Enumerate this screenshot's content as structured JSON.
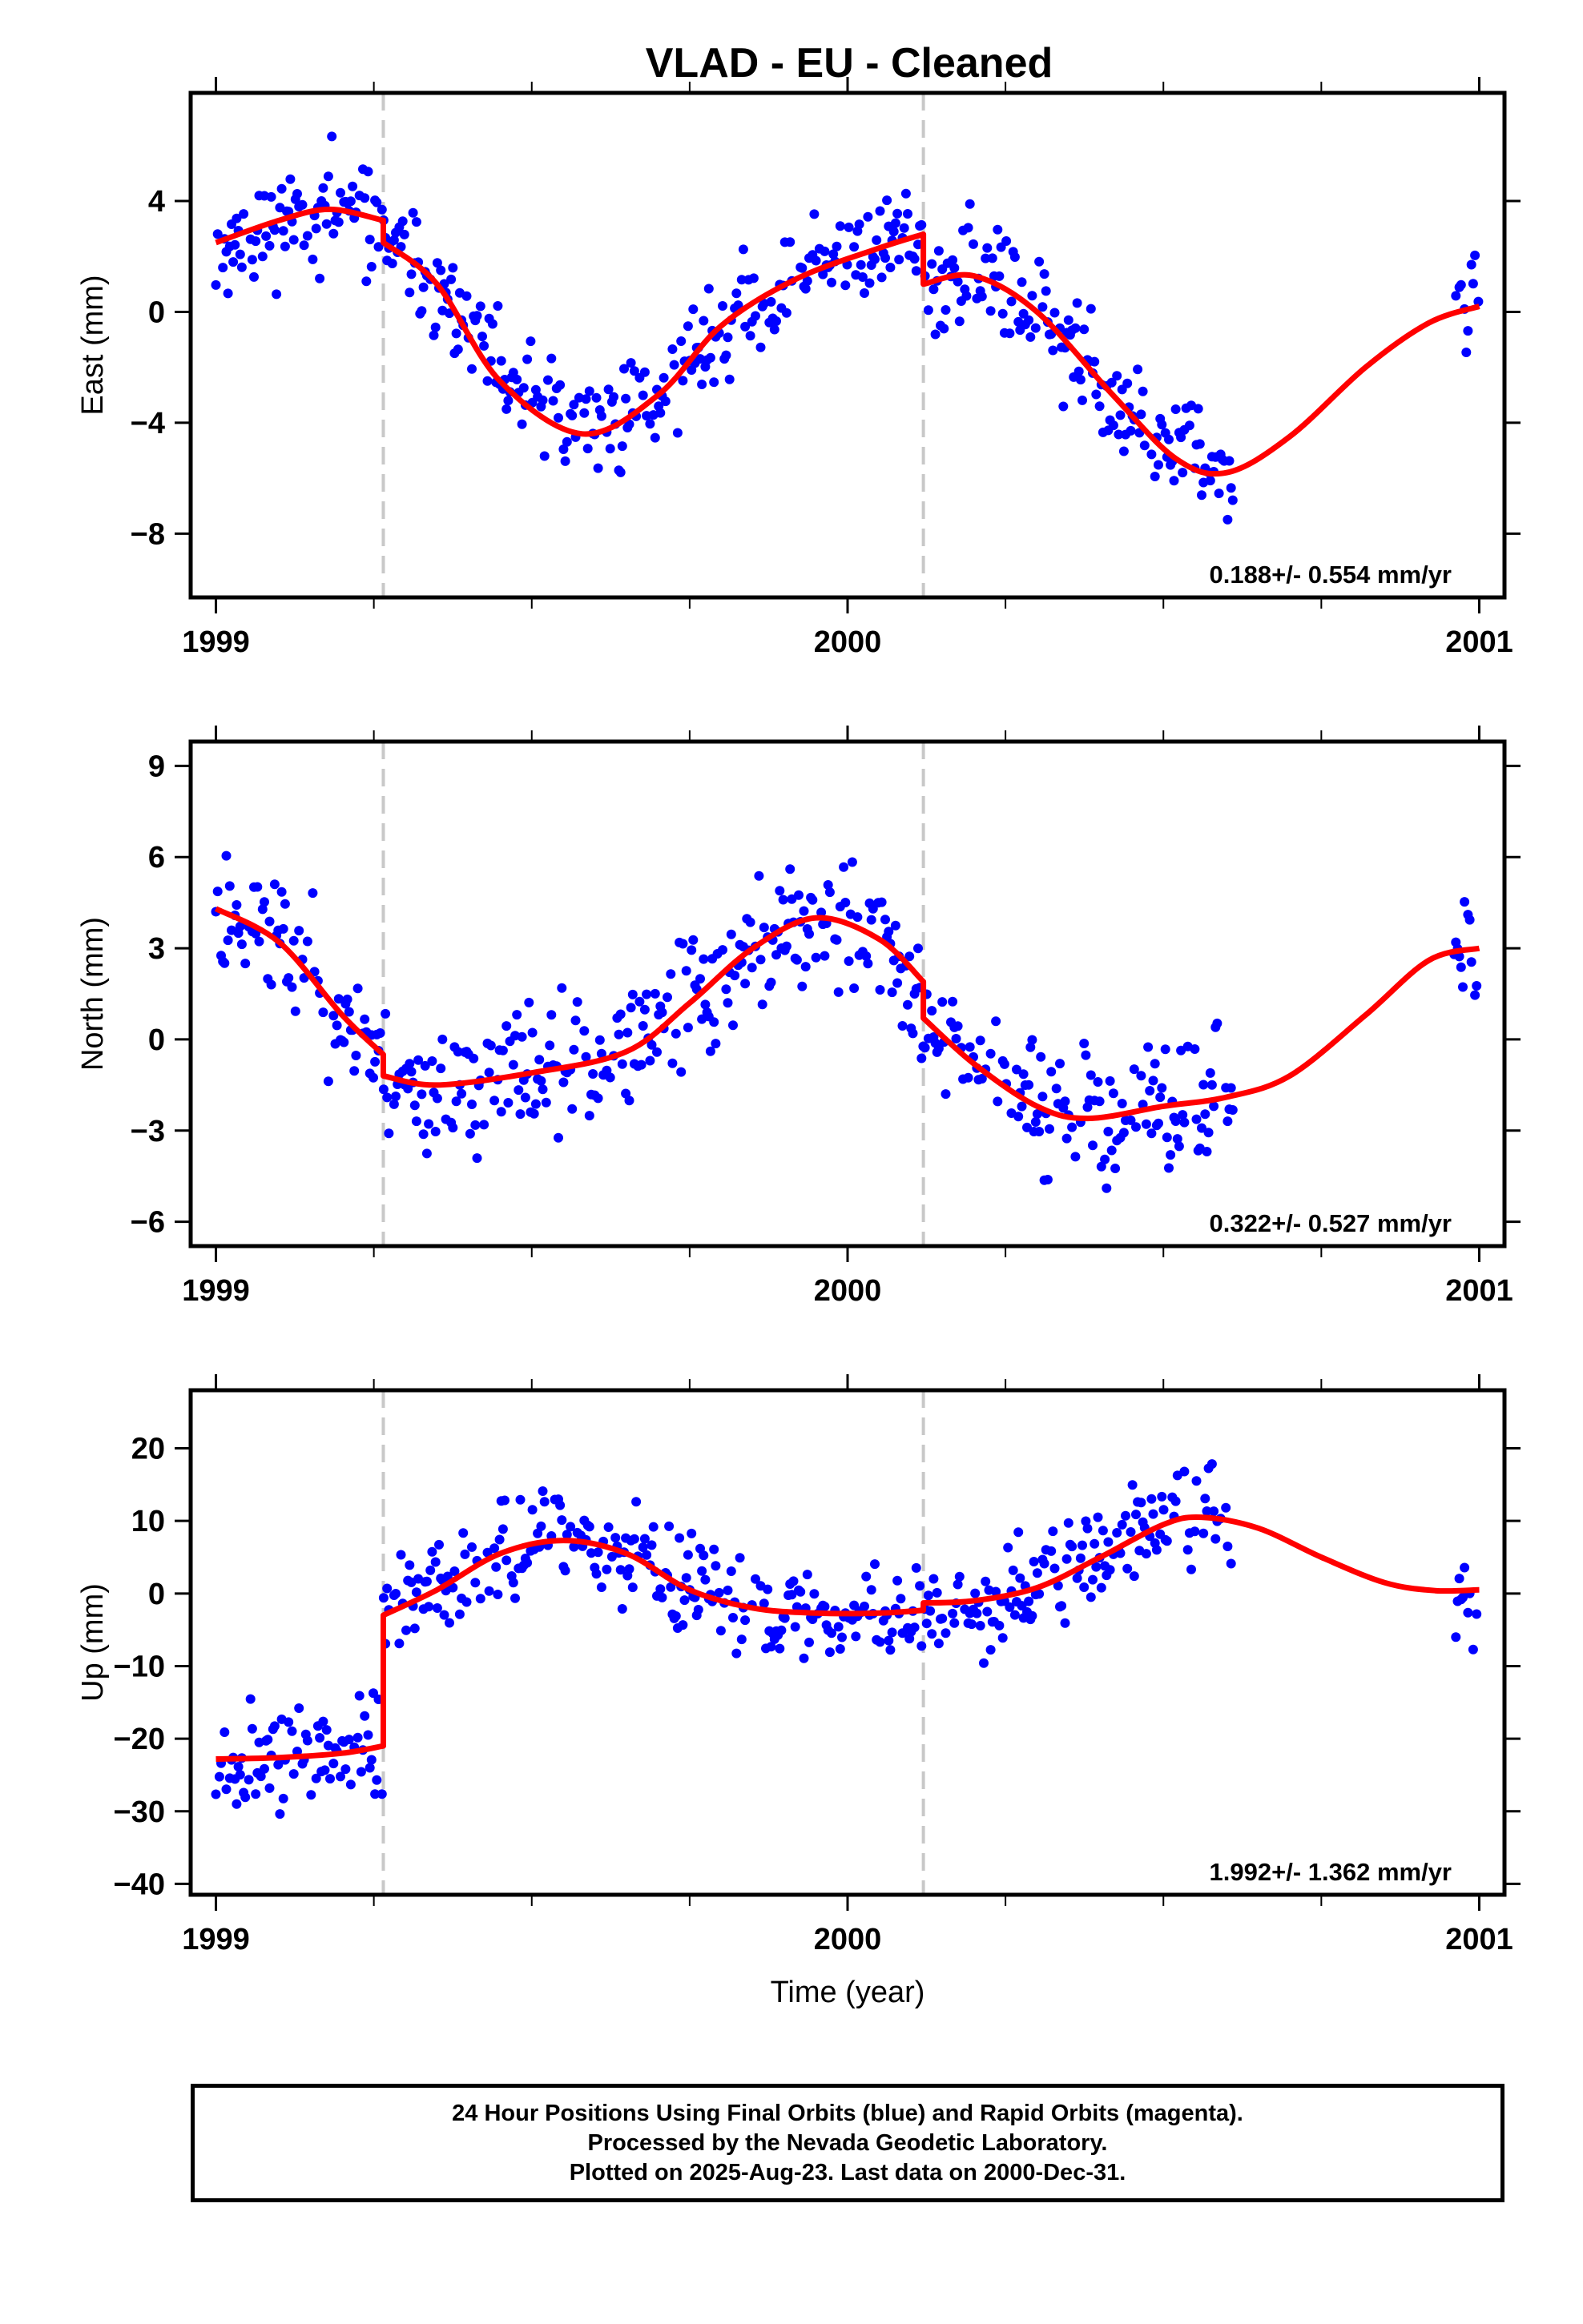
{
  "title": "VLAD  - EU - Cleaned",
  "colors": {
    "points": "#0000ff",
    "fit": "#ff0000",
    "breaks": "#c8c8c8",
    "frame": "#000000"
  },
  "x_axis": {
    "label": "Time (year)",
    "ticks": [
      1999,
      2000,
      2001
    ],
    "range": [
      1998.96,
      2001.04
    ]
  },
  "break_epochs": [
    1999.265,
    2000.12
  ],
  "footer": {
    "line1": "24 Hour Positions Using Final Orbits (blue) and Rapid Orbits (magenta).",
    "line2": "Processed by the Nevada Geodetic Laboratory.",
    "line3": "Plotted on 2025-Aug-23. Last data on 2000-Dec-31."
  },
  "chart_data": [
    {
      "type": "scatter",
      "ylabel": "East (mm)",
      "ylim": [
        -10.3,
        7.9
      ],
      "yticks": [
        -8,
        -4,
        0,
        4
      ],
      "rate": "0.188+/- 0.554 mm/yr",
      "seed": 11,
      "noise": 1.2,
      "fit": {
        "x": [
          1999.0,
          1999.1,
          1999.18,
          1999.265,
          1999.265,
          1999.35,
          1999.45,
          1999.58,
          1999.7,
          1999.8,
          1999.92,
          2000.05,
          2000.12,
          2000.12,
          2000.2,
          2000.3,
          2000.42,
          2000.52,
          2000.6,
          2000.7,
          2000.82,
          2000.92,
          2001.0
        ],
        "y": [
          2.5,
          3.3,
          3.7,
          3.3,
          2.5,
          1.0,
          -2.5,
          -4.4,
          -3.0,
          -0.5,
          1.2,
          2.3,
          2.8,
          1.0,
          1.3,
          0.0,
          -3.0,
          -5.3,
          -5.8,
          -4.5,
          -2.0,
          -0.4,
          0.2
        ]
      },
      "gaps": [
        [
          2000.61,
          2000.96
        ]
      ]
    },
    {
      "type": "scatter",
      "ylabel": "North (mm)",
      "ylim": [
        -6.8,
        9.8
      ],
      "yticks": [
        -6,
        -3,
        0,
        3,
        6,
        9
      ],
      "rate": "0.322+/- 0.527 mm/yr",
      "seed": 23,
      "noise": 1.3,
      "fit": {
        "x": [
          1999.0,
          1999.1,
          1999.2,
          1999.265,
          1999.265,
          1999.35,
          1999.5,
          1999.65,
          1999.75,
          1999.85,
          1999.95,
          2000.05,
          2000.12,
          2000.12,
          2000.2,
          2000.3,
          2000.38,
          2000.5,
          2000.6,
          2000.7,
          2000.82,
          2000.92,
          2001.0
        ],
        "y": [
          4.3,
          3.2,
          0.8,
          -0.5,
          -1.2,
          -1.5,
          -1.1,
          -0.4,
          1.2,
          3.0,
          4.0,
          3.3,
          1.9,
          0.7,
          -0.8,
          -2.2,
          -2.6,
          -2.2,
          -1.9,
          -1.2,
          0.8,
          2.6,
          3.0
        ]
      },
      "gaps": [
        [
          2000.61,
          2000.96
        ]
      ]
    },
    {
      "type": "scatter",
      "ylabel": "Up (mm)",
      "ylim": [
        -41.5,
        28
      ],
      "yticks": [
        -40,
        -30,
        -20,
        -10,
        0,
        10,
        20
      ],
      "rate": "1.992+/- 1.362 mm/yr",
      "seed": 37,
      "noise": 4.5,
      "fit": {
        "x": [
          1999.0,
          1999.1,
          1999.2,
          1999.265,
          1999.265,
          1999.35,
          1999.45,
          1999.55,
          1999.65,
          1999.75,
          1999.85,
          1999.95,
          2000.05,
          2000.12,
          2000.12,
          2000.2,
          2000.3,
          2000.4,
          2000.5,
          2000.56,
          2000.65,
          2000.75,
          2000.85,
          2000.93,
          2001.0
        ],
        "y": [
          -22.8,
          -22.6,
          -22.0,
          -21.0,
          -3.0,
          0.5,
          5.5,
          7.3,
          5.5,
          0.5,
          -2.0,
          -2.7,
          -2.7,
          -2.3,
          -1.3,
          -1.0,
          0.8,
          5.0,
          9.5,
          10.5,
          9.0,
          5.0,
          1.5,
          0.4,
          0.5
        ]
      },
      "gaps": [
        [
          2000.61,
          2000.96
        ]
      ]
    }
  ]
}
